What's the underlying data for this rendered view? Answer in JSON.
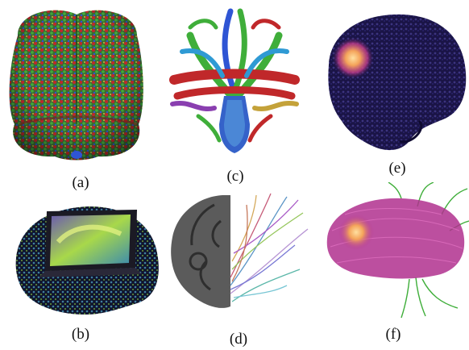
{
  "panels": [
    {
      "id": "a",
      "label": "(a)"
    },
    {
      "id": "b",
      "label": "(b)"
    },
    {
      "id": "c",
      "label": "(c)"
    },
    {
      "id": "d",
      "label": "(d)"
    },
    {
      "id": "e",
      "label": "(e)"
    },
    {
      "id": "f",
      "label": "(f)"
    }
  ],
  "colors": {
    "red_fiber": "#c0282a",
    "green_fiber": "#3fae3a",
    "blue_fiber": "#2f55d4",
    "dark_navy": "#1a1446",
    "magenta_fiber": "#b0308e",
    "tumor": "#f4a35a",
    "gray_brain": "#5b5b5b"
  }
}
